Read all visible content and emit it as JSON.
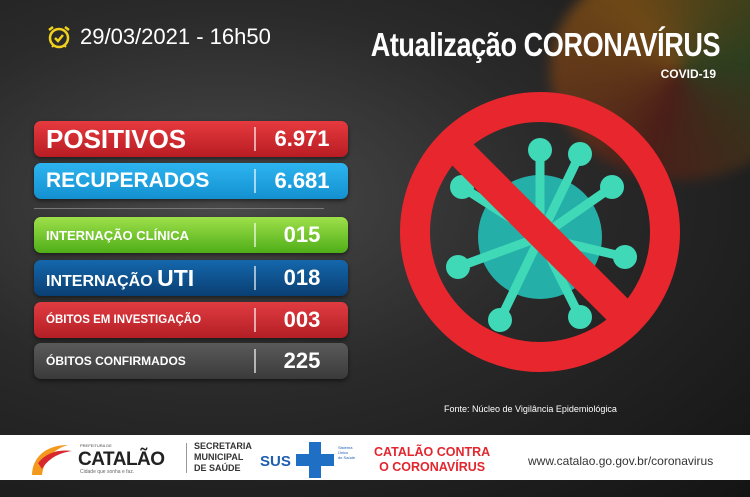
{
  "header": {
    "datetime": "29/03/2021 - 16h50",
    "title": "Atualização CORONAVÍRUS",
    "subtitle": "COVID-19",
    "clock_icon": "alarm-clock-check-icon"
  },
  "stats": [
    {
      "label": "POSITIVOS",
      "value": "6.971",
      "color": "#d8282e"
    },
    {
      "label": "RECUPERADOS",
      "value": "6.681",
      "color": "#1ba3e2"
    },
    {
      "label": "INTERNAÇÃO CLÍNICA",
      "value": "015",
      "color": "#6cc329"
    },
    {
      "label_a": "INTERNAÇÃO ",
      "label_b": "UTI",
      "value": "018",
      "color": "#0d5391"
    },
    {
      "label": "ÓBITOS EM INVESTIGAÇÃO",
      "value": "003",
      "color": "#cf2a30"
    },
    {
      "label": "ÓBITOS CONFIRMADOS",
      "value": "225",
      "color": "#4a4a4a"
    }
  ],
  "source": "Fonte: Núcleo de Vigilância Epidemiológica",
  "footer": {
    "prefeitura": "PREFEITURA DE",
    "city": "CATALÃO",
    "slogan": "Cidade que sonha e faz.",
    "secretaria": [
      "SECRETARIA",
      "MUNICIPAL",
      "DE SAÚDE"
    ],
    "sus": "SUS",
    "sus_sub": [
      "Sistema",
      "Único",
      "de Saúde"
    ],
    "campaign": [
      "CATALÃO CONTRA",
      "O CORONAVÍRUS"
    ],
    "url": "www.catalao.go.gov.br/coronavirus"
  }
}
